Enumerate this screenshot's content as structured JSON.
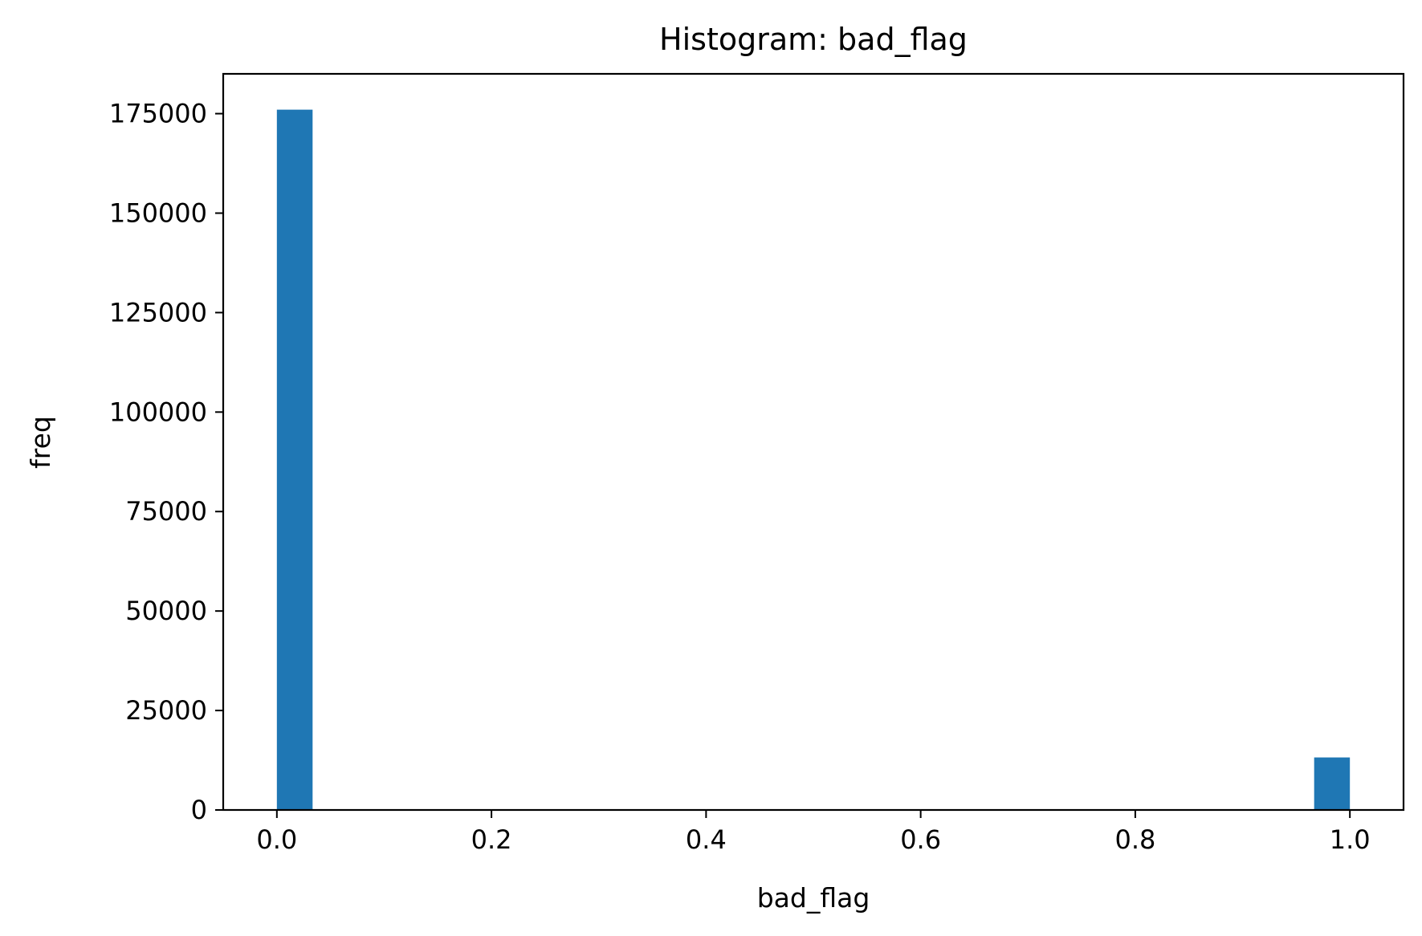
{
  "chart_data": {
    "type": "bar",
    "title": "Histogram: bad_flag",
    "xlabel": "bad_flag",
    "ylabel": "freq",
    "xlim": [
      -0.05,
      1.05
    ],
    "ylim": [
      0,
      185000
    ],
    "x_ticks": [
      0.0,
      0.2,
      0.4,
      0.6,
      0.8,
      1.0
    ],
    "x_tick_labels": [
      "0.0",
      "0.2",
      "0.4",
      "0.6",
      "0.8",
      "1.0"
    ],
    "y_ticks": [
      0,
      25000,
      50000,
      75000,
      100000,
      125000,
      150000,
      175000
    ],
    "y_tick_labels": [
      "0",
      "25000",
      "50000",
      "75000",
      "100000",
      "125000",
      "150000",
      "175000"
    ],
    "bins": [
      {
        "x0": 0.0,
        "x1": 0.0333,
        "count": 176000
      },
      {
        "x0": 0.9667,
        "x1": 1.0,
        "count": 13200
      }
    ],
    "bar_color": "#1f77b4",
    "grid": false,
    "legend": null
  }
}
